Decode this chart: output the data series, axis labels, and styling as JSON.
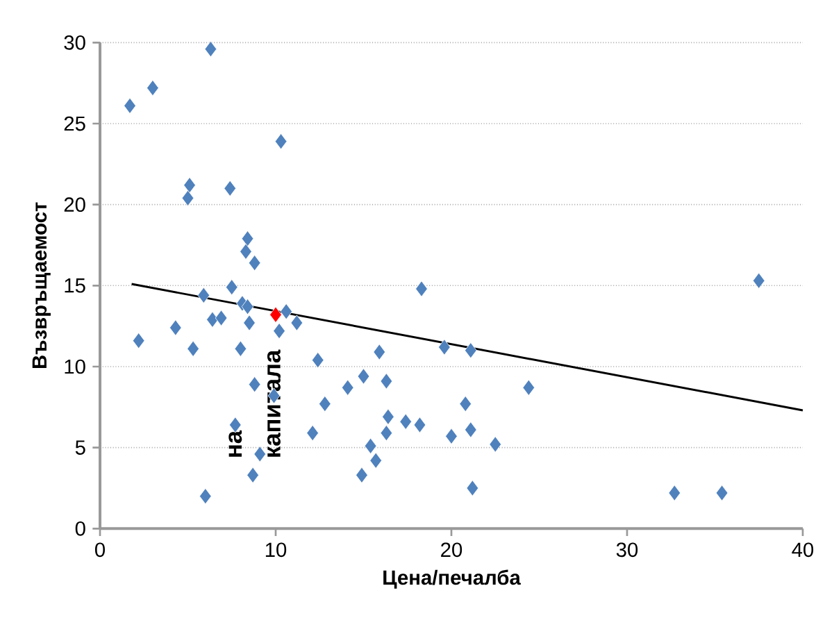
{
  "chart_data": {
    "type": "scatter",
    "xlabel": "Цена/печалба",
    "ylabel": "Възвръщаемост",
    "annotations": [
      "на",
      "капитала"
    ],
    "xlim": [
      0,
      40
    ],
    "ylim": [
      0,
      30
    ],
    "xticks": [
      0,
      10,
      20,
      30,
      40
    ],
    "yticks": [
      0,
      5,
      10,
      15,
      20,
      25,
      30
    ],
    "grid": "y",
    "marker": "diamond",
    "series": [
      {
        "color": "#4f81bd",
        "x": [
          1.7,
          3.0,
          6.3,
          5.1,
          5.0,
          7.4,
          10.3,
          8.4,
          8.3,
          8.8,
          18.3,
          37.5,
          7.5,
          5.9,
          8.1,
          8.4,
          6.4,
          6.9,
          8.5,
          10.6,
          11.2,
          10.2,
          2.2,
          4.3,
          5.3,
          8.0,
          12.4,
          8.8,
          9.9,
          12.8,
          14.1,
          7.7,
          12.1,
          9.1,
          8.7,
          6.0,
          19.6,
          21.1,
          15.9,
          15.0,
          16.3,
          24.4,
          20.8,
          16.4,
          17.4,
          18.2,
          16.3,
          20.0,
          21.1,
          22.5,
          15.4,
          15.7,
          14.9,
          21.2,
          32.7,
          35.4
        ],
        "values": [
          26.1,
          27.2,
          29.6,
          21.2,
          20.4,
          21.0,
          23.9,
          17.9,
          17.1,
          16.4,
          14.8,
          15.3,
          14.9,
          14.4,
          13.9,
          13.7,
          12.9,
          13.0,
          12.7,
          13.4,
          12.7,
          12.2,
          11.6,
          12.4,
          11.1,
          11.1,
          10.4,
          8.9,
          8.2,
          7.7,
          8.7,
          6.4,
          5.9,
          4.6,
          3.3,
          2.0,
          11.2,
          11.0,
          10.9,
          9.4,
          9.1,
          8.7,
          7.7,
          6.9,
          6.6,
          6.4,
          5.9,
          5.7,
          6.1,
          5.2,
          5.1,
          4.2,
          3.3,
          2.5,
          2.2,
          2.2
        ]
      },
      {
        "color": "#ff0000",
        "x": [
          10.0
        ],
        "values": [
          13.2
        ]
      },
      {
        "type": "line",
        "color": "#000000",
        "marker": "none",
        "x": [
          1.8,
          40
        ],
        "values": [
          15.1,
          7.3
        ]
      }
    ]
  }
}
